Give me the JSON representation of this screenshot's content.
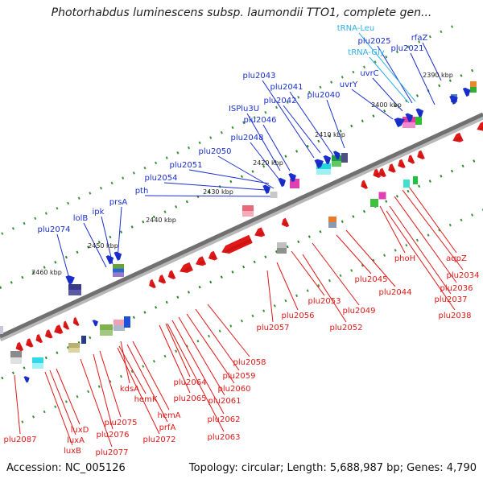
{
  "title": "Photorhabdus luminescens subsp. laumondii TTO1, complete gen...",
  "accession": "Accession: NC_005126",
  "info": "Topology: circular; Length: 5,688,987 bp; Genes: 4,790",
  "ticks": [
    "2390 kbp",
    "2400 kbp",
    "2410 kbp",
    "2420 kbp",
    "2430 kbp",
    "2440 kbp",
    "2450 kbp",
    "2460 kbp"
  ],
  "upper_labels": [
    "rfaZ",
    "plu2021",
    "plu2025",
    "tRNA-Leu",
    "tRNA-Gly",
    "uvrC",
    "uvrY",
    "plu2040",
    "plu2041",
    "plu2042",
    "plu2043",
    "plu2046",
    "ISPlu3U",
    "plu2048",
    "plu2050",
    "plu2051",
    "plu2054",
    "pth",
    "prsA",
    "ipk",
    "lolB",
    "plu2074"
  ],
  "lower_labels": [
    "aqpZ",
    "plu2034",
    "plu2036",
    "phoH",
    "plu2037",
    "plu2038",
    "plu2045",
    "plu2044",
    "plu2049",
    "plu2053",
    "plu2052",
    "plu2056",
    "plu2057",
    "plu2058",
    "plu2059",
    "plu2060",
    "plu2061",
    "plu2064",
    "plu2065",
    "plu2062",
    "plu2063",
    "kdsA",
    "hemK",
    "hemA",
    "prfA",
    "plu2072",
    "plu2075",
    "plu2076",
    "luxD",
    "luxA",
    "luxB",
    "plu2077",
    "plu2087"
  ],
  "colors": {
    "forward": "#1a2fd0",
    "reverse": "#e01818",
    "trna": "#30b0e8",
    "tick": "#2a8a2a",
    "backbone": "#707070"
  }
}
